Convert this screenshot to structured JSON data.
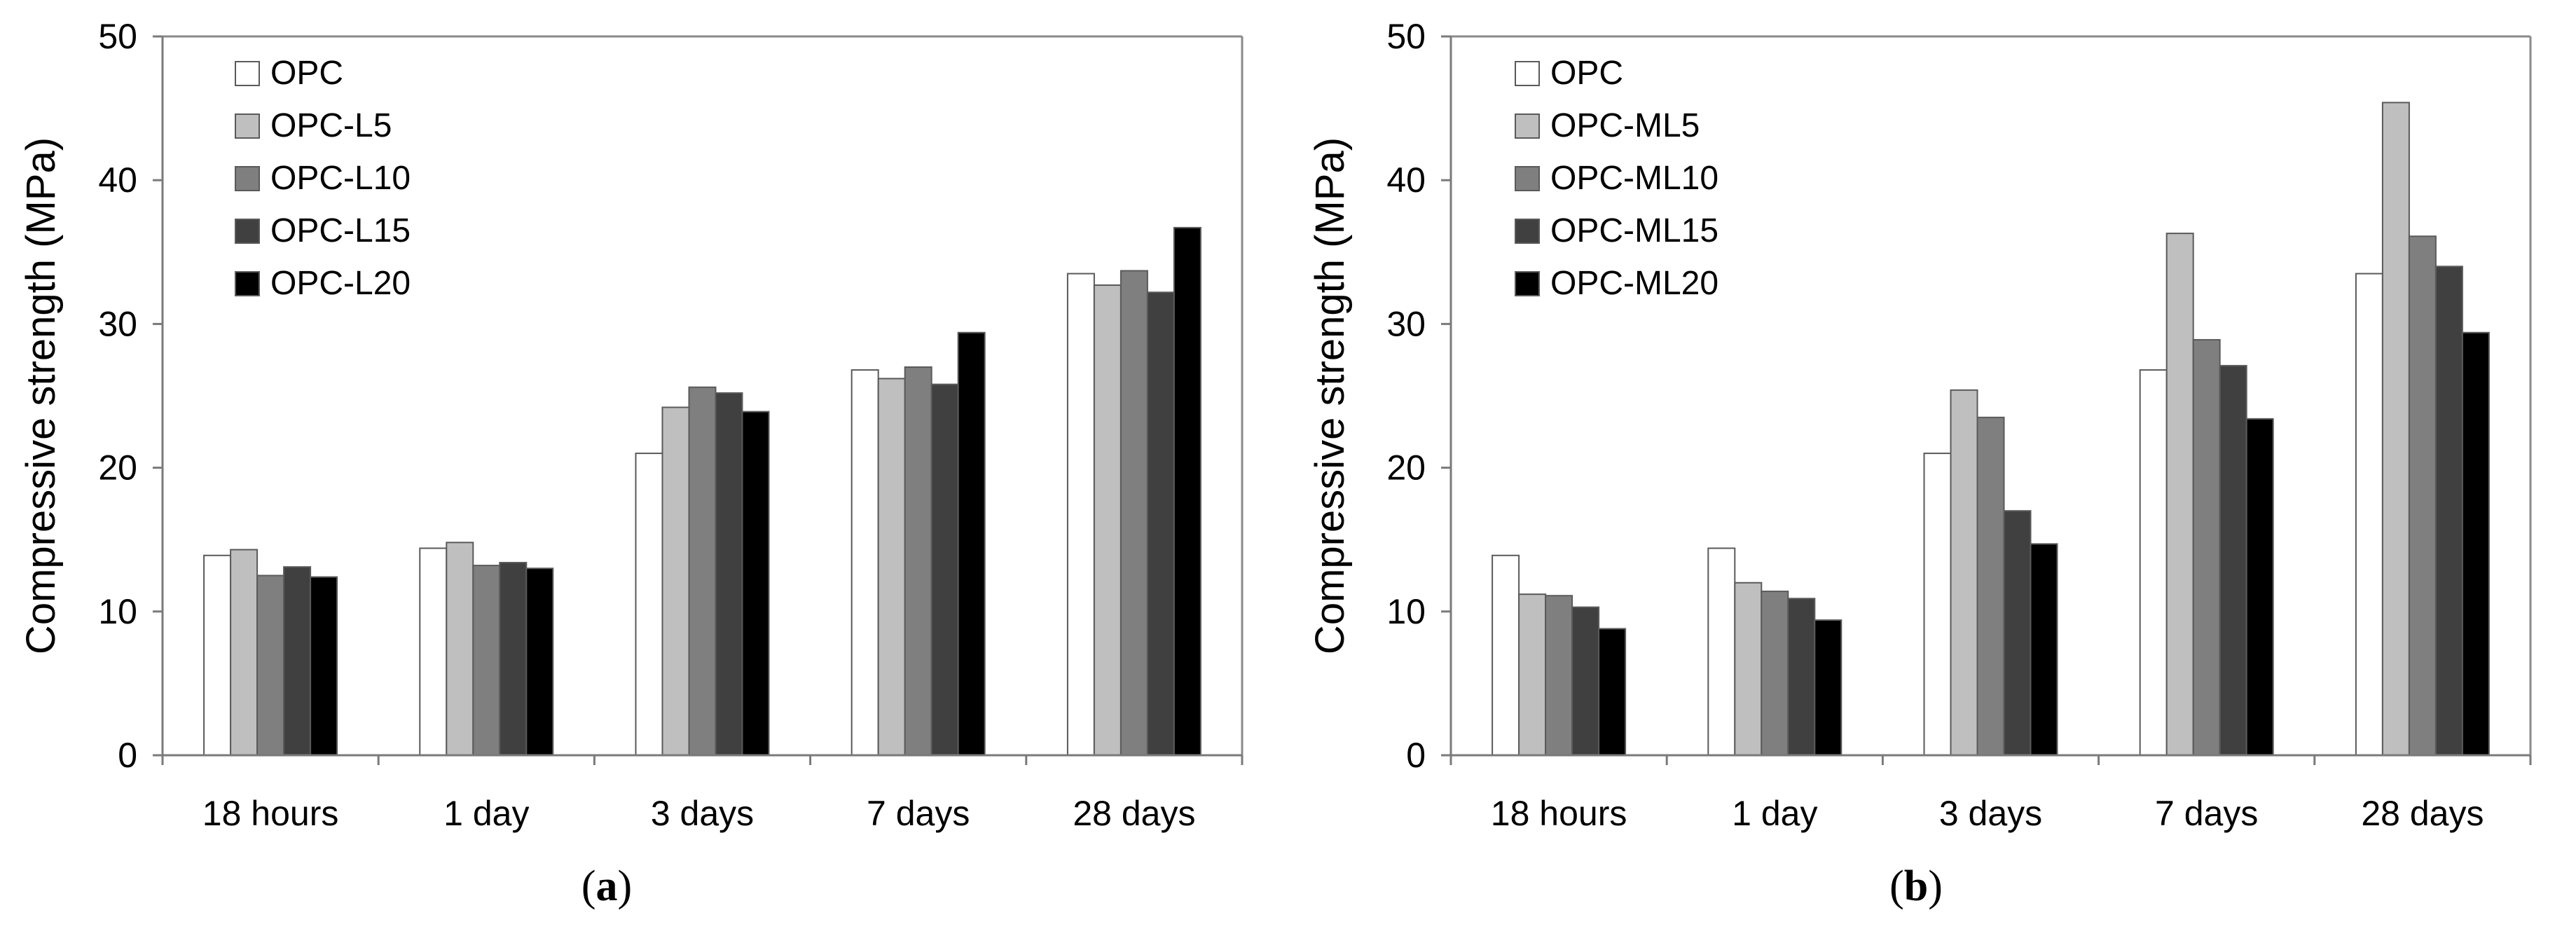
{
  "chart_data": [
    {
      "type": "bar",
      "panel_label": "(a)",
      "panel_letter": "a",
      "ylabel": "Compressive strength (MPa)",
      "xlabel": "",
      "ylim": [
        0,
        50
      ],
      "yticks": [
        0,
        10,
        20,
        30,
        40,
        50
      ],
      "categories": [
        "18 hours",
        "1 day",
        "3 days",
        "7 days",
        "28 days"
      ],
      "legend_position": "top-left",
      "grid": false,
      "series": [
        {
          "name": "OPC",
          "color": "#ffffff",
          "values": [
            13.9,
            14.4,
            21.0,
            26.8,
            33.5
          ]
        },
        {
          "name": "OPC-L5",
          "color": "#bfbfbf",
          "values": [
            14.3,
            14.8,
            24.2,
            26.2,
            32.7
          ]
        },
        {
          "name": "OPC-L10",
          "color": "#7f7f7f",
          "values": [
            12.5,
            13.2,
            25.6,
            27.0,
            33.7
          ]
        },
        {
          "name": "OPC-L15",
          "color": "#404040",
          "values": [
            13.1,
            13.4,
            25.2,
            25.8,
            32.2
          ]
        },
        {
          "name": "OPC-L20",
          "color": "#000000",
          "values": [
            12.4,
            13.0,
            23.9,
            29.4,
            36.7
          ]
        }
      ]
    },
    {
      "type": "bar",
      "panel_label": "(b)",
      "panel_letter": "b",
      "ylabel": "Compressive strength (MPa)",
      "xlabel": "",
      "ylim": [
        0,
        50
      ],
      "yticks": [
        0,
        10,
        20,
        30,
        40,
        50
      ],
      "categories": [
        "18 hours",
        "1 day",
        "3 days",
        "7 days",
        "28 days"
      ],
      "legend_position": "top-left",
      "grid": false,
      "series": [
        {
          "name": "OPC",
          "color": "#ffffff",
          "values": [
            13.9,
            14.4,
            21.0,
            26.8,
            33.5
          ]
        },
        {
          "name": "OPC-ML5",
          "color": "#bfbfbf",
          "values": [
            11.2,
            12.0,
            25.4,
            36.3,
            45.4
          ]
        },
        {
          "name": "OPC-ML10",
          "color": "#7f7f7f",
          "values": [
            11.1,
            11.4,
            23.5,
            28.9,
            36.1
          ]
        },
        {
          "name": "OPC-ML15",
          "color": "#404040",
          "values": [
            10.3,
            10.9,
            17.0,
            27.1,
            34.0
          ]
        },
        {
          "name": "OPC-ML20",
          "color": "#000000",
          "values": [
            8.8,
            9.4,
            14.7,
            23.4,
            29.4
          ]
        }
      ]
    }
  ]
}
